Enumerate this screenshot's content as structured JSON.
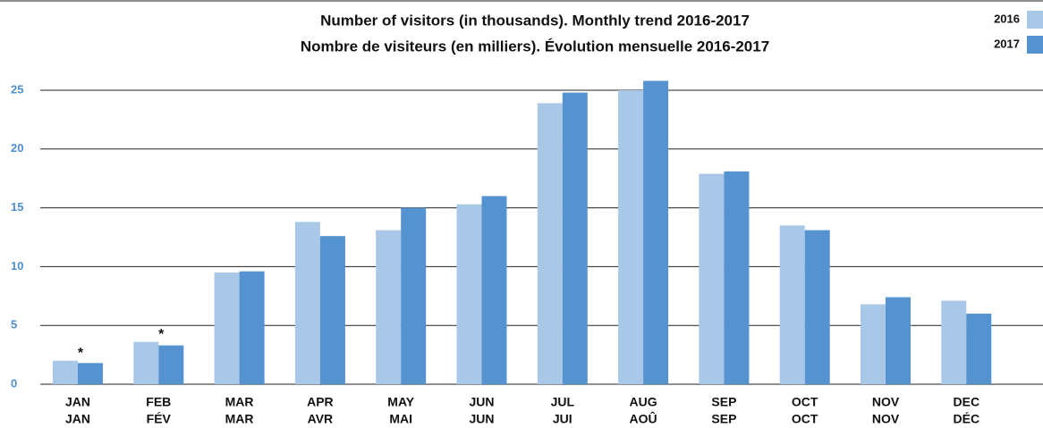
{
  "chart_data": {
    "type": "bar",
    "title": [
      "Number of visitors (in thousands). Monthly trend 2016-2017",
      "Nombre de visiteurs (en milliers). Évolution mensuelle 2016-2017"
    ],
    "categories": [
      [
        "JAN",
        "JAN"
      ],
      [
        "FEB",
        "FÉV"
      ],
      [
        "MAR",
        "MAR"
      ],
      [
        "APR",
        "AVR"
      ],
      [
        "MAY",
        "MAI"
      ],
      [
        "JUN",
        "JUN"
      ],
      [
        "JUL",
        "JUI"
      ],
      [
        "AUG",
        "AOÛ"
      ],
      [
        "SEP",
        "SEP"
      ],
      [
        "OCT",
        "OCT"
      ],
      [
        "NOV",
        "NOV"
      ],
      [
        "DEC",
        "DÉC"
      ]
    ],
    "series": [
      {
        "name": "2016",
        "color": "#a9c8e8",
        "values": [
          2.0,
          3.6,
          9.5,
          13.8,
          13.1,
          15.3,
          23.9,
          25.0,
          17.9,
          13.5,
          6.8,
          7.1
        ]
      },
      {
        "name": "2017",
        "color": "#5592d0",
        "values": [
          1.8,
          3.3,
          9.6,
          12.6,
          15.0,
          16.0,
          24.8,
          25.8,
          18.1,
          13.1,
          7.4,
          6.0
        ]
      }
    ],
    "annotations": [
      {
        "text": "*",
        "index": 0
      },
      {
        "text": "*",
        "index": 1
      }
    ],
    "ylim": [
      0,
      25
    ],
    "yticks": [
      0,
      5,
      10,
      15,
      20,
      25
    ],
    "grid": true
  }
}
